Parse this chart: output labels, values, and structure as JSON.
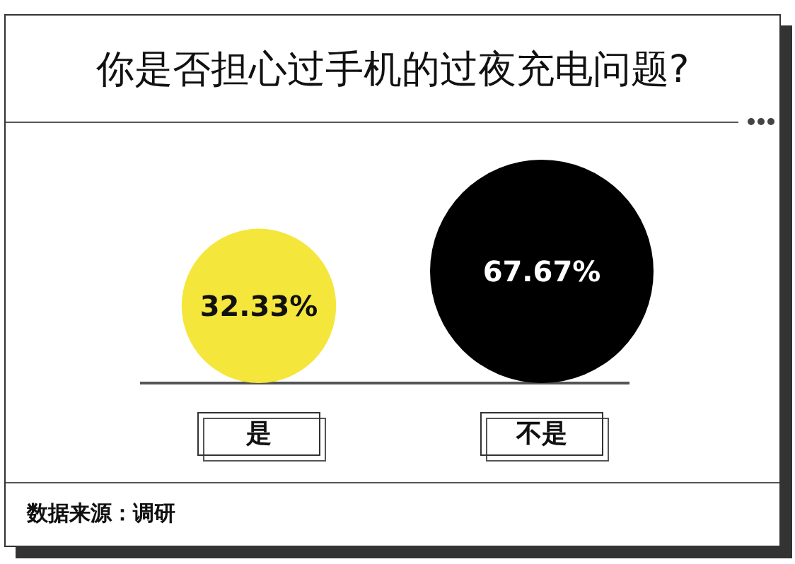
{
  "chart_data": {
    "type": "other",
    "title": "你是否担心过手机的过夜充电问题?",
    "categories": [
      "是",
      "不是"
    ],
    "values": [
      32.33,
      67.67
    ],
    "value_labels": [
      "32.33%",
      "67.67%"
    ],
    "colors": [
      "#f5e63c",
      "#000000"
    ],
    "annotations": [
      "数据来源：调研"
    ]
  }
}
